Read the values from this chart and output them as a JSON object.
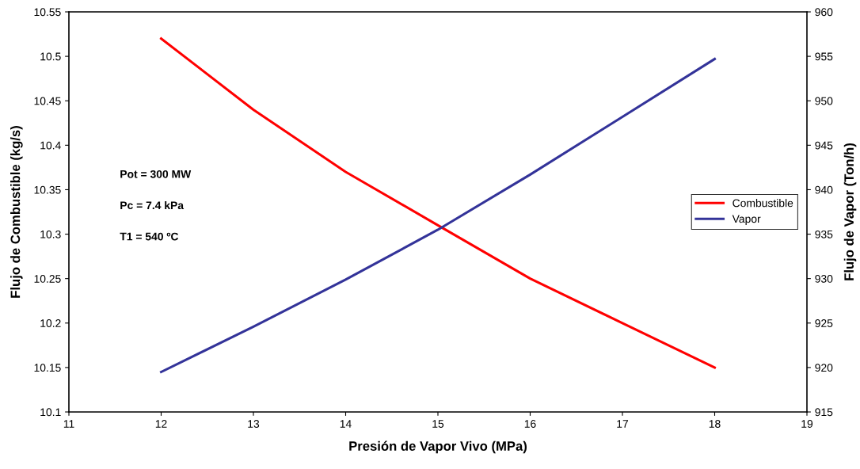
{
  "chart_data": {
    "type": "line",
    "xlabel": "Presión de Vapor Vivo (MPa)",
    "ylabel": "Flujo de Combustible (kg/s)",
    "y2label": "Flujo de Vapor (Ton/h)",
    "x": [
      12,
      13,
      14,
      15,
      16,
      17,
      18
    ],
    "series": [
      {
        "name": "Combustible",
        "color": "#ff0000",
        "values": [
          10.52,
          10.44,
          10.37,
          10.31,
          10.25,
          10.2,
          10.15
        ]
      },
      {
        "name": "Vapor",
        "color": "#333399",
        "axis": "y2",
        "values": [
          919.5,
          924.6,
          929.9,
          935.5,
          941.7,
          948.2,
          954.7
        ]
      }
    ],
    "xlim": [
      11,
      19
    ],
    "xticks": [
      11,
      12,
      13,
      14,
      15,
      16,
      17,
      18,
      19
    ],
    "ylim": [
      10.1,
      10.55
    ],
    "yticks": [
      10.1,
      10.15,
      10.2,
      10.25,
      10.3,
      10.35,
      10.4,
      10.45,
      10.5,
      10.55
    ],
    "y2lim": [
      915,
      960
    ],
    "y2ticks": [
      915,
      920,
      925,
      930,
      935,
      940,
      945,
      950,
      955,
      960
    ],
    "annotations": [
      "Pot = 300 MW",
      "Pc = 7.4 kPa",
      "T1 = 540 ºC"
    ],
    "legend": "right",
    "grid": false,
    "marker": "none",
    "line_style": "solid"
  }
}
